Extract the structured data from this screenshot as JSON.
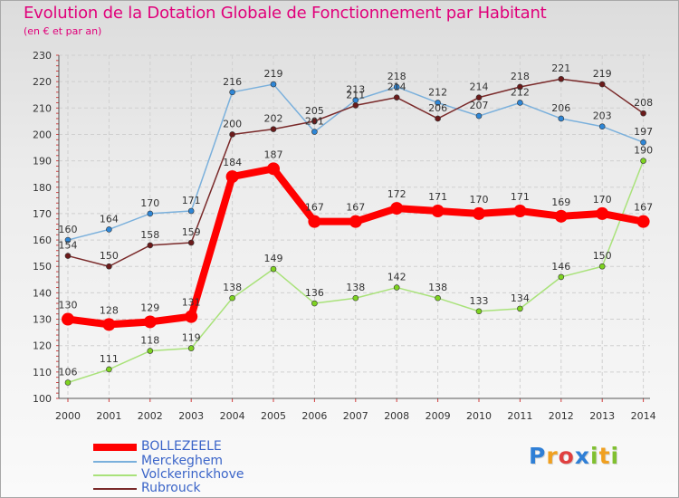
{
  "header": {
    "title": "Evolution de la Dotation Globale de Fonctionnement par Habitant",
    "subtitle": "(en € et par an)"
  },
  "chart_data": {
    "type": "line",
    "title": "Evolution de la Dotation Globale de Fonctionnement par Habitant",
    "subtitle": "(en € et par an)",
    "xlabel": "",
    "ylabel": "",
    "x": [
      "2000",
      "2001",
      "2002",
      "2003",
      "2004",
      "2005",
      "2006",
      "2007",
      "2008",
      "2009",
      "2010",
      "2011",
      "2012",
      "2013",
      "2014"
    ],
    "ylim": [
      100,
      230
    ],
    "yticks": [
      100,
      110,
      120,
      130,
      140,
      150,
      160,
      170,
      180,
      190,
      200,
      210,
      220,
      230
    ],
    "grid": true,
    "legend_position": "bottom-left",
    "series": [
      {
        "name": "BOLLEZEELE",
        "color": "#ff0000",
        "emphasis": true,
        "values": [
          130,
          128,
          129,
          131,
          184,
          187,
          167,
          167,
          172,
          171,
          170,
          171,
          169,
          170,
          167
        ]
      },
      {
        "name": "Merckeghem",
        "color": "#2e86d6",
        "emphasis": false,
        "values": [
          160,
          164,
          170,
          171,
          216,
          219,
          201,
          213,
          218,
          212,
          207,
          212,
          206,
          203,
          197
        ]
      },
      {
        "name": "Volckerinckhove",
        "color": "#7ed321",
        "emphasis": false,
        "values": [
          106,
          111,
          118,
          119,
          138,
          149,
          136,
          138,
          142,
          138,
          133,
          134,
          146,
          150,
          190
        ]
      },
      {
        "name": "Rubrouck",
        "color": "#6b1a1a",
        "emphasis": false,
        "values": [
          154,
          150,
          158,
          159,
          200,
          202,
          205,
          211,
          214,
          206,
          214,
          218,
          221,
          219,
          208
        ]
      }
    ]
  },
  "legend": {
    "items": [
      {
        "label": "BOLLEZEELE",
        "color": "#ff0000"
      },
      {
        "label": "Merckeghem",
        "color": "#7ab0dc"
      },
      {
        "label": "Volckerinckhove",
        "color": "#a9e27a"
      },
      {
        "label": "Rubrouck",
        "color": "#7a2a2a"
      }
    ]
  },
  "logo": {
    "text": "Proxiti",
    "letters": [
      {
        "ch": "P",
        "color": "#2f7fd6"
      },
      {
        "ch": "r",
        "color": "#f0a020"
      },
      {
        "ch": "o",
        "color": "#e04040"
      },
      {
        "ch": "x",
        "color": "#2f7fd6"
      },
      {
        "ch": "i",
        "color": "#80c030"
      },
      {
        "ch": "t",
        "color": "#f0a020"
      },
      {
        "ch": "i",
        "color": "#80c030"
      }
    ]
  }
}
